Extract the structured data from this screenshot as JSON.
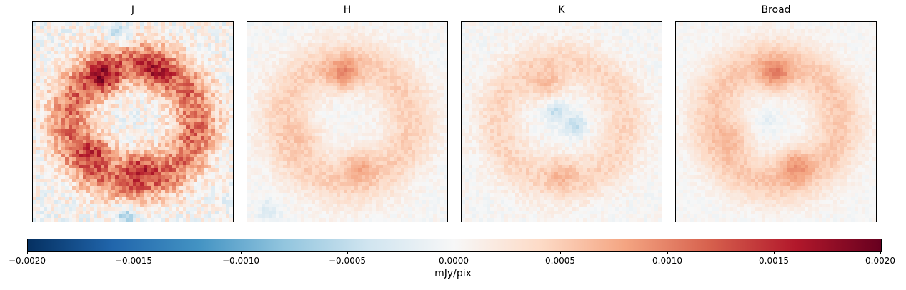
{
  "chart_data": {
    "type": "heatmap",
    "colormap": "RdBu_r",
    "panels": [
      {
        "title": "J"
      },
      {
        "title": "H"
      },
      {
        "title": "K"
      },
      {
        "title": "Broad"
      }
    ],
    "colorbar": {
      "label": "mJy/pix",
      "vmin": -0.002,
      "vmax": 0.002,
      "ticks": [
        "−0.0020",
        "−0.0015",
        "−0.0010",
        "−0.0005",
        "0.0000",
        "0.0005",
        "0.0010",
        "0.0015",
        "0.0020"
      ]
    }
  }
}
